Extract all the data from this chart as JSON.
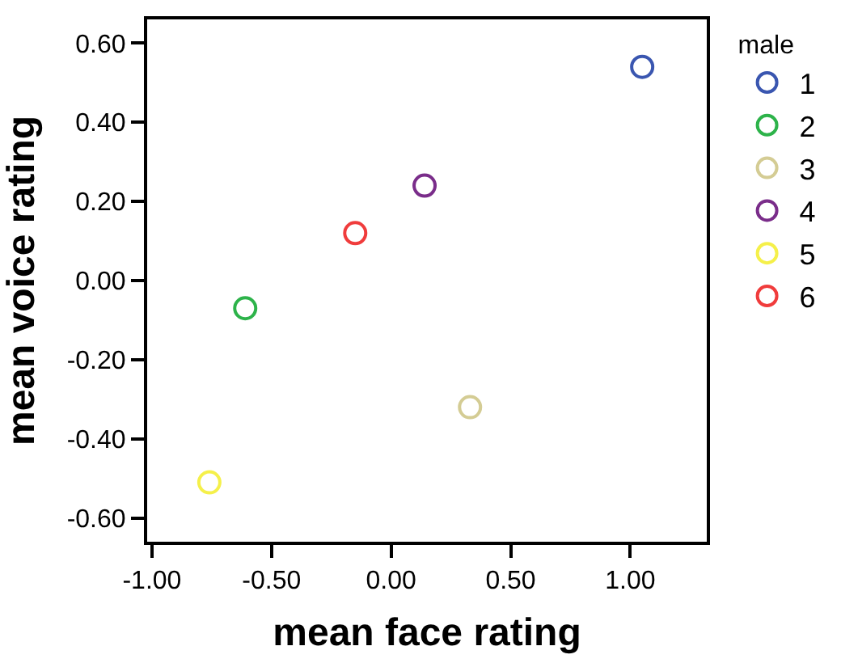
{
  "chart_data": {
    "type": "scatter",
    "xlabel": "mean face rating",
    "ylabel": "mean voice rating",
    "legend_title": "male",
    "legend": "top right",
    "marker": "circle",
    "xlim": [
      -1.02,
      1.32
    ],
    "xticks": [
      {
        "value": -1,
        "label": "-1.00"
      },
      {
        "value": -0.5,
        "label": "-0.50"
      },
      {
        "value": 0,
        "label": "0.00"
      },
      {
        "value": 0.5,
        "label": "0.50"
      },
      {
        "value": 1,
        "label": "1.00"
      }
    ],
    "ylim": [
      -0.66,
      0.66
    ],
    "yticks": [
      {
        "value": -0.6,
        "label": "-0.60"
      },
      {
        "value": -0.4,
        "label": "-0.40"
      },
      {
        "value": -0.2,
        "label": "-0.20"
      },
      {
        "value": 0,
        "label": "0.00"
      },
      {
        "value": 0.2,
        "label": "0.20"
      },
      {
        "value": 0.4,
        "label": "0.40"
      },
      {
        "value": 0.6,
        "label": "0.60"
      }
    ],
    "series": [
      {
        "name": "1",
        "color": "#3a56b0",
        "x": [
          1.05
        ],
        "values": [
          0.54
        ]
      },
      {
        "name": "2",
        "color": "#2db34a",
        "x": [
          -0.61
        ],
        "values": [
          -0.07
        ]
      },
      {
        "name": "3",
        "color": "#d4cc94",
        "x": [
          0.33
        ],
        "values": [
          -0.32
        ]
      },
      {
        "name": "4",
        "color": "#7a2d8a",
        "x": [
          0.14
        ],
        "values": [
          0.24
        ]
      },
      {
        "name": "5",
        "color": "#f5f04a",
        "x": [
          -0.76
        ],
        "values": [
          -0.51
        ]
      },
      {
        "name": "6",
        "color": "#f03c3c",
        "x": [
          -0.15
        ],
        "values": [
          0.12
        ]
      }
    ]
  }
}
